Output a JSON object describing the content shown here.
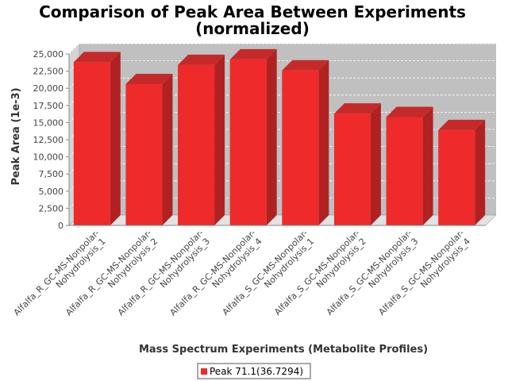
{
  "chart_data": {
    "type": "bar",
    "title": "Comparison of Peak Area Between Experiments",
    "subtitle": "(normalized)",
    "xlabel": "Mass Spectrum Experiments (Metabolite Profiles)",
    "ylabel": "Peak Area (1e-3)",
    "ylim": [
      0,
      25000
    ],
    "yticks": [
      "0",
      "2,500",
      "5,000",
      "7,500",
      "10,000",
      "12,500",
      "15,000",
      "17,500",
      "20,000",
      "22,500",
      "25,000"
    ],
    "ytick_values": [
      0,
      2500,
      5000,
      7500,
      10000,
      12500,
      15000,
      17500,
      20000,
      22500,
      25000
    ],
    "categories": [
      [
        "Alfalfa_R_GC-MS-Nonpolar-",
        "Nohydrolysis_1"
      ],
      [
        "Alfalfa_R_GC-MS-Nonpolar-",
        "Nohydrolysis_2"
      ],
      [
        "Alfalfa_R_GC-MS-Nonpolar-",
        "Nohydrolysis_3"
      ],
      [
        "Alfalfa_R_GC-MS-Nonpolar-",
        "Nohydrolysis_4"
      ],
      [
        "Alfalfa_S_GC-MS-Nonpolar-",
        "Nohydrolysis_1"
      ],
      [
        "Alfalfa_S_GC-MS-Nonpolar-",
        "Nohydrolysis_2"
      ],
      [
        "Alfalfa_S_GC-MS-Nonpolar-",
        "Nohydrolysis_3"
      ],
      [
        "Alfalfa_S_GC-MS-Nonpolar-",
        "Nohydrolysis_4"
      ]
    ],
    "series": [
      {
        "name": "Peak 71.1(36.7294)",
        "values": [
          23800,
          20600,
          23400,
          24200,
          22600,
          16300,
          15800,
          13900
        ],
        "color": "#ee2a2a"
      }
    ],
    "grid": true,
    "legend_placement": "bottom-center",
    "plot_background": "#c0c0c0"
  }
}
